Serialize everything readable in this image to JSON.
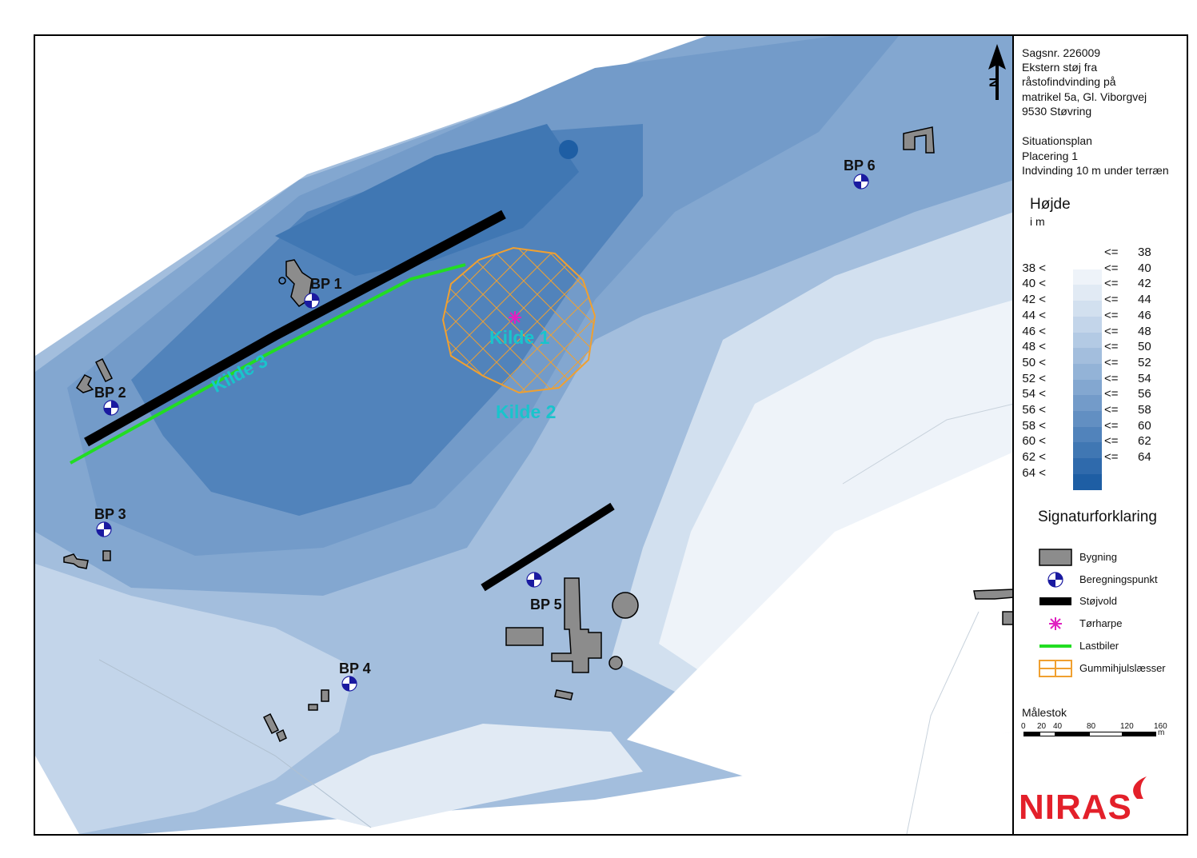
{
  "meta": {
    "lines": [
      "Sagsnr. 226009",
      "Ekstern støj fra",
      "råstofindvinding på",
      "matrikel 5a, Gl. Viborgvej",
      "9530 Støvring",
      "",
      "Situationsplan",
      "Placering 1",
      "Indvinding 10 m under terræn"
    ]
  },
  "height_legend": {
    "title": "Højde",
    "unit": "i m",
    "first_row": {
      "le": "<=",
      "hi": "38"
    },
    "rows": [
      {
        "lo": "38 <",
        "le": "<=",
        "hi": "40"
      },
      {
        "lo": "40 <",
        "le": "<=",
        "hi": "42"
      },
      {
        "lo": "42 <",
        "le": "<=",
        "hi": "44"
      },
      {
        "lo": "44 <",
        "le": "<=",
        "hi": "46"
      },
      {
        "lo": "46 <",
        "le": "<=",
        "hi": "48"
      },
      {
        "lo": "48 <",
        "le": "<=",
        "hi": "50"
      },
      {
        "lo": "50 <",
        "le": "<=",
        "hi": "52"
      },
      {
        "lo": "52 <",
        "le": "<=",
        "hi": "54"
      },
      {
        "lo": "54 <",
        "le": "<=",
        "hi": "56"
      },
      {
        "lo": "56 <",
        "le": "<=",
        "hi": "58"
      },
      {
        "lo": "58 <",
        "le": "<=",
        "hi": "60"
      },
      {
        "lo": "60 <",
        "le": "<=",
        "hi": "62"
      },
      {
        "lo": "62 <",
        "le": "<=",
        "hi": "64"
      },
      {
        "lo": "64 <"
      }
    ],
    "colors": [
      "#ffffff",
      "#eef3f9",
      "#e1eaf4",
      "#d2e0ef",
      "#c3d5ea",
      "#b3cae4",
      "#a3bedd",
      "#93b3d7",
      "#83a7d0",
      "#739bc9",
      "#628fc2",
      "#5183bb",
      "#4077b3",
      "#2f6aac",
      "#1e5ea4"
    ]
  },
  "signatur": {
    "title": "Signaturforklaring",
    "items": [
      {
        "label": "Bygning",
        "icon": "building-swatch-icon"
      },
      {
        "label": "Beregningspunkt",
        "icon": "calc-point-icon"
      },
      {
        "label": "Støjvold",
        "icon": "noise-wall-icon"
      },
      {
        "label": "Tørharpe",
        "icon": "asterisk-icon"
      },
      {
        "label": "Lastbiler",
        "icon": "truck-line-icon"
      },
      {
        "label": "Gummihjulslæsser",
        "icon": "hatched-area-icon"
      }
    ]
  },
  "scale": {
    "title": "Målestok",
    "ticks": [
      "0",
      "20",
      "40",
      "80",
      "120",
      "160"
    ],
    "unit": "m"
  },
  "logo": {
    "text": "NIRAS",
    "color": "#e3202a"
  },
  "north_arrow": {
    "label": "N"
  },
  "map_labels": {
    "points": [
      "BP 1",
      "BP 2",
      "BP 3",
      "BP 4",
      "BP 5",
      "BP 6"
    ],
    "sources": [
      "Kilde 1",
      "Kilde 2",
      "Kilde 3"
    ]
  },
  "colors": {
    "noise_wall": "#000000",
    "truck_line": "#22dd22",
    "loader_hatch": "#f0a030",
    "torharpe": "#e020c0",
    "source_label": "#19c4cc",
    "building_fill": "#8c8c8c"
  }
}
